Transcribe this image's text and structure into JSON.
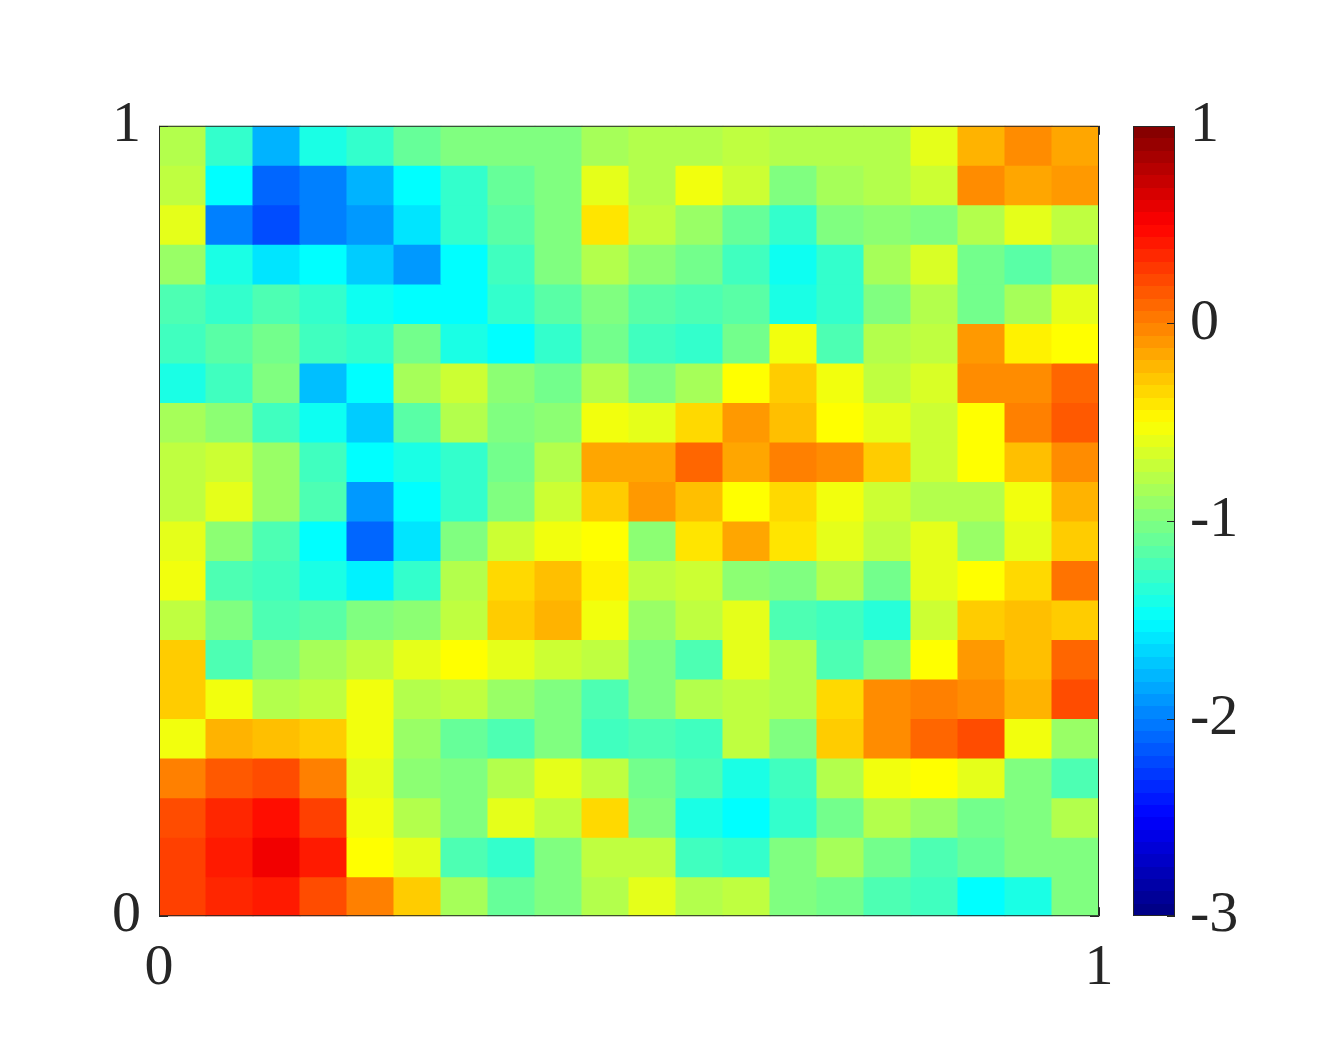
{
  "chart_data": {
    "type": "heatmap",
    "xlim": [
      0,
      1
    ],
    "ylim": [
      0,
      1
    ],
    "xticks": [
      0,
      1
    ],
    "yticks": [
      0,
      1
    ],
    "clim": [
      -3,
      1
    ],
    "cticks": [
      -3,
      -2,
      -1,
      0,
      1
    ],
    "cells": [
      [
        -0.8,
        -1.3,
        -1.8,
        -1.4,
        -1.3,
        -1.1,
        -1.0,
        -1.0,
        -1.0,
        -0.85,
        -0.8,
        -0.8,
        -0.75,
        -0.8,
        -0.8,
        -0.8,
        -0.6,
        -0.2,
        -0.05,
        -0.15
      ],
      [
        -0.75,
        -1.5,
        -2.1,
        -2.0,
        -1.8,
        -1.5,
        -1.3,
        -1.1,
        -1.0,
        -0.6,
        -0.8,
        -0.55,
        -0.7,
        -1.0,
        -0.85,
        -0.8,
        -0.7,
        -0.05,
        -0.15,
        -0.1
      ],
      [
        -0.6,
        -2.0,
        -2.2,
        -2.0,
        -1.9,
        -1.6,
        -1.3,
        -1.15,
        -1.0,
        -0.4,
        -0.75,
        -0.9,
        -1.1,
        -1.3,
        -1.0,
        -0.95,
        -1.0,
        -0.8,
        -0.6,
        -0.75
      ],
      [
        -0.9,
        -1.4,
        -1.6,
        -1.5,
        -1.7,
        -1.9,
        -1.5,
        -1.25,
        -1.0,
        -0.8,
        -0.95,
        -1.05,
        -1.25,
        -1.45,
        -1.3,
        -0.85,
        -0.65,
        -1.05,
        -1.15,
        -1.0
      ],
      [
        -1.2,
        -1.3,
        -1.2,
        -1.3,
        -1.45,
        -1.5,
        -1.5,
        -1.3,
        -1.15,
        -1.0,
        -1.15,
        -1.2,
        -1.15,
        -1.4,
        -1.3,
        -1.0,
        -0.8,
        -1.05,
        -0.85,
        -0.6
      ],
      [
        -1.25,
        -1.15,
        -1.05,
        -1.25,
        -1.3,
        -1.05,
        -1.4,
        -1.5,
        -1.3,
        -1.05,
        -1.25,
        -1.3,
        -1.05,
        -0.55,
        -1.2,
        -0.8,
        -0.75,
        -0.1,
        -0.45,
        -0.5
      ],
      [
        -1.4,
        -1.25,
        -1.0,
        -1.75,
        -1.5,
        -0.85,
        -0.7,
        -0.95,
        -1.05,
        -0.8,
        -1.0,
        -0.85,
        -0.5,
        -0.3,
        -0.55,
        -0.75,
        -0.65,
        -0.05,
        -0.05,
        0.1
      ],
      [
        -0.85,
        -0.95,
        -1.25,
        -1.45,
        -1.7,
        -1.15,
        -0.8,
        -1.0,
        -0.95,
        -0.55,
        -0.6,
        -0.35,
        -0.1,
        -0.25,
        -0.5,
        -0.6,
        -0.7,
        -0.5,
        0.0,
        0.15
      ],
      [
        -0.75,
        -0.7,
        -0.9,
        -1.25,
        -1.5,
        -1.4,
        -1.3,
        -1.05,
        -0.8,
        -0.15,
        -0.15,
        0.1,
        -0.15,
        0.0,
        -0.05,
        -0.3,
        -0.7,
        -0.5,
        -0.25,
        -0.05
      ],
      [
        -0.75,
        -0.6,
        -0.9,
        -1.2,
        -1.9,
        -1.5,
        -1.3,
        -1.0,
        -0.7,
        -0.3,
        -0.1,
        -0.25,
        -0.5,
        -0.35,
        -0.55,
        -0.7,
        -0.8,
        -0.8,
        -0.55,
        -0.2
      ],
      [
        -0.6,
        -0.95,
        -1.2,
        -1.5,
        -2.1,
        -1.6,
        -1.0,
        -0.7,
        -0.55,
        -0.5,
        -0.95,
        -0.4,
        -0.15,
        -0.4,
        -0.6,
        -0.75,
        -0.6,
        -0.9,
        -0.6,
        -0.3
      ],
      [
        -0.55,
        -1.2,
        -1.25,
        -1.4,
        -1.55,
        -1.3,
        -0.8,
        -0.35,
        -0.25,
        -0.45,
        -0.75,
        -0.7,
        -0.95,
        -1.0,
        -0.8,
        -1.05,
        -0.6,
        -0.5,
        -0.35,
        0.05
      ],
      [
        -0.75,
        -1.0,
        -1.2,
        -1.15,
        -1.0,
        -0.95,
        -0.75,
        -0.3,
        -0.2,
        -0.55,
        -0.9,
        -0.75,
        -0.6,
        -1.2,
        -1.25,
        -1.35,
        -0.7,
        -0.3,
        -0.25,
        -0.3
      ],
      [
        -0.3,
        -1.2,
        -1.0,
        -0.85,
        -0.75,
        -0.6,
        -0.5,
        -0.6,
        -0.7,
        -0.75,
        -1.0,
        -1.2,
        -0.6,
        -0.8,
        -1.2,
        -1.0,
        -0.5,
        -0.1,
        -0.25,
        0.1
      ],
      [
        -0.3,
        -0.55,
        -0.8,
        -0.75,
        -0.55,
        -0.8,
        -0.75,
        -0.9,
        -1.0,
        -1.2,
        -1.0,
        -0.8,
        -0.75,
        -0.8,
        -0.35,
        -0.05,
        0.0,
        -0.05,
        -0.2,
        0.2
      ],
      [
        -0.55,
        -0.2,
        -0.25,
        -0.3,
        -0.55,
        -0.9,
        -1.1,
        -1.2,
        -1.0,
        -1.25,
        -1.2,
        -1.25,
        -0.75,
        -1.0,
        -0.3,
        -0.05,
        0.1,
        0.2,
        -0.55,
        -0.9
      ],
      [
        0.0,
        0.15,
        0.2,
        0.0,
        -0.6,
        -0.95,
        -1.0,
        -0.8,
        -0.6,
        -0.75,
        -1.05,
        -1.2,
        -1.4,
        -1.25,
        -0.8,
        -0.55,
        -0.5,
        -0.6,
        -1.0,
        -1.2
      ],
      [
        0.2,
        0.35,
        0.45,
        0.25,
        -0.55,
        -0.8,
        -1.0,
        -0.6,
        -0.75,
        -0.35,
        -1.0,
        -1.4,
        -1.5,
        -1.3,
        -1.05,
        -0.8,
        -0.9,
        -1.05,
        -1.0,
        -0.8
      ],
      [
        0.25,
        0.4,
        0.55,
        0.4,
        -0.5,
        -0.6,
        -1.2,
        -1.3,
        -1.0,
        -0.75,
        -0.75,
        -1.25,
        -1.3,
        -1.0,
        -0.85,
        -1.05,
        -1.2,
        -1.1,
        -1.0,
        -1.0
      ],
      [
        0.25,
        0.35,
        0.4,
        0.2,
        0.0,
        -0.3,
        -0.85,
        -1.1,
        -1.0,
        -0.8,
        -0.6,
        -0.8,
        -0.75,
        -1.0,
        -1.05,
        -1.2,
        -1.25,
        -1.5,
        -1.4,
        -1.0
      ]
    ]
  }
}
